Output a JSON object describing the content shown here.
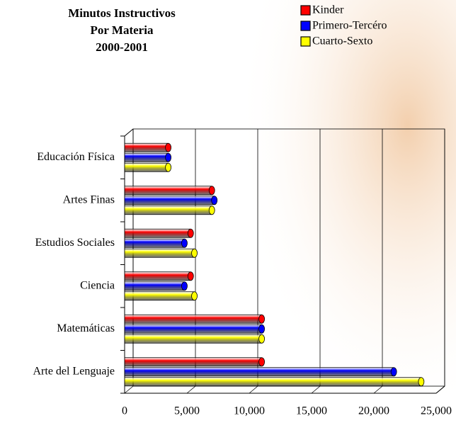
{
  "chart_data": {
    "type": "bar",
    "orientation": "horizontal",
    "title_lines": [
      "Minutos Instructivos",
      "Por Materia",
      "2000-2001"
    ],
    "categories": [
      "Educación Física",
      "Artes Finas",
      "Estudios Sociales",
      "Ciencia",
      "Matemáticas",
      "Arte del Lenguaje"
    ],
    "series": [
      {
        "name": "Kinder",
        "color": "#ff0000",
        "values": [
          3500,
          7000,
          5300,
          5300,
          11000,
          11000
        ]
      },
      {
        "name": "Primero-Tercéro",
        "color": "#0000ff",
        "values": [
          3500,
          7200,
          4800,
          4800,
          11000,
          21600
        ]
      },
      {
        "name": "Cuarto-Sexto",
        "color": "#ffff00",
        "values": [
          3500,
          7000,
          5600,
          5600,
          11000,
          23800
        ]
      }
    ],
    "xlim": [
      0,
      25000
    ],
    "xticks": [
      0,
      {
        "value": 5000,
        "label": "5,000"
      },
      {
        "value": 10000,
        "label": "10,000"
      },
      {
        "value": 15000,
        "label": "15,000"
      },
      {
        "value": 20000,
        "label": "20,000"
      },
      {
        "value": 25000,
        "label": "25,000"
      }
    ],
    "grid": true,
    "legend": "top-right"
  }
}
